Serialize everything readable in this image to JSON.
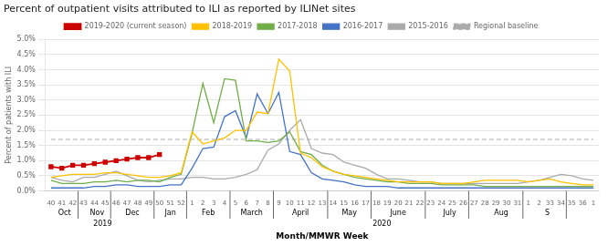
{
  "chart_data": {
    "type": "line",
    "title": "Percent of outpatient visits attributed to ILI as reported by ILINet sites",
    "y_label": "Percent of patients with ILI",
    "x_label": "Month/MMWR Week",
    "categories": [
      "40",
      "41",
      "42",
      "43",
      "44",
      "45",
      "46",
      "47",
      "48",
      "49",
      "50",
      "51",
      "52",
      "1",
      "2",
      "3",
      "4",
      "5",
      "6",
      "7",
      "8",
      "9",
      "10",
      "11",
      "12",
      "13",
      "14",
      "15",
      "16",
      "17",
      "18",
      "19",
      "20",
      "21",
      "22",
      "23",
      "24",
      "25",
      "26",
      "27",
      "28",
      "29",
      "30",
      "31",
      "1",
      "2",
      "33",
      "34",
      "35",
      "36",
      "1"
    ],
    "reference_lines": [
      {
        "name": "Regional baseline",
        "value": 1.7,
        "color": "#aaaaaa",
        "line_style": "dashed"
      }
    ],
    "series": [
      {
        "name": "2015-2016",
        "color": "#aaaaaa",
        "values": [
          0.45,
          0.35,
          0.3,
          0.45,
          0.45,
          0.55,
          0.65,
          0.5,
          0.35,
          0.3,
          0.35,
          0.4,
          0.4,
          0.45,
          0.45,
          0.4,
          0.4,
          0.45,
          0.55,
          0.7,
          1.35,
          1.55,
          2.0,
          2.35,
          1.4,
          1.25,
          1.2,
          0.95,
          0.85,
          0.75,
          0.55,
          0.4,
          0.4,
          0.35,
          0.3,
          0.3,
          0.25,
          0.25,
          0.25,
          0.25,
          0.25,
          0.25,
          0.25,
          0.25,
          0.3,
          0.35,
          0.45,
          0.55,
          0.5,
          0.4,
          0.35
        ]
      },
      {
        "name": "2016-2017",
        "color": "#4472c4",
        "values": [
          0.1,
          0.1,
          0.1,
          0.1,
          0.15,
          0.15,
          0.2,
          0.2,
          0.15,
          0.15,
          0.15,
          0.2,
          0.2,
          0.75,
          1.4,
          1.45,
          2.45,
          2.65,
          1.75,
          3.2,
          2.55,
          3.25,
          1.3,
          1.2,
          0.6,
          0.4,
          0.35,
          0.3,
          0.2,
          0.15,
          0.15,
          0.15,
          0.1,
          0.1,
          0.1,
          0.1,
          0.1,
          0.1,
          0.1,
          0.1,
          0.1,
          0.1,
          0.1,
          0.1,
          0.1,
          0.1,
          0.1,
          0.1,
          0.1,
          0.1,
          0.1
        ]
      },
      {
        "name": "2017-2018",
        "color": "#70ad47",
        "values": [
          0.35,
          0.25,
          0.25,
          0.25,
          0.3,
          0.3,
          0.35,
          0.3,
          0.35,
          0.35,
          0.3,
          0.45,
          0.55,
          1.9,
          3.55,
          2.25,
          3.7,
          3.65,
          1.65,
          1.65,
          1.6,
          1.65,
          1.95,
          1.3,
          1.2,
          0.85,
          0.65,
          0.55,
          0.45,
          0.4,
          0.35,
          0.3,
          0.3,
          0.25,
          0.25,
          0.25,
          0.2,
          0.2,
          0.2,
          0.2,
          0.15,
          0.15,
          0.15,
          0.15,
          0.15,
          0.15,
          0.15,
          0.15,
          0.15,
          0.15,
          0.15
        ]
      },
      {
        "name": "2018-2019",
        "color": "#ffc000",
        "values": [
          0.45,
          0.5,
          0.55,
          0.55,
          0.55,
          0.6,
          0.6,
          0.55,
          0.5,
          0.45,
          0.45,
          0.5,
          0.6,
          1.95,
          1.55,
          1.65,
          1.75,
          2.0,
          2.0,
          2.6,
          2.55,
          4.35,
          3.95,
          1.25,
          1.1,
          0.8,
          0.65,
          0.55,
          0.5,
          0.45,
          0.4,
          0.35,
          0.3,
          0.3,
          0.3,
          0.3,
          0.25,
          0.25,
          0.25,
          0.3,
          0.35,
          0.35,
          0.35,
          0.35,
          0.3,
          0.35,
          0.4,
          0.3,
          0.25,
          0.2,
          0.2
        ]
      },
      {
        "name": "2019-2020 (current season)",
        "color": "#cc0000",
        "marker": "square",
        "values": [
          0.8,
          0.75,
          0.85,
          0.85,
          0.9,
          0.95,
          1.0,
          1.05,
          1.1,
          1.1,
          1.2,
          null,
          null,
          null,
          null,
          null,
          null,
          null,
          null,
          null,
          null,
          null,
          null,
          null,
          null,
          null,
          null,
          null,
          null,
          null,
          null,
          null,
          null,
          null,
          null,
          null,
          null,
          null,
          null,
          null,
          null,
          null,
          null,
          null,
          null,
          null,
          null,
          null,
          null,
          null,
          null
        ]
      }
    ],
    "ylim": [
      0.0,
      5.0
    ],
    "yticks": [
      {
        "value": 0.0,
        "label": "0.0%"
      },
      {
        "value": 0.5,
        "label": "0.5%"
      },
      {
        "value": 1.0,
        "label": "1.0%"
      },
      {
        "value": 1.5,
        "label": "1.5%"
      },
      {
        "value": 2.0,
        "label": "2.0%"
      },
      {
        "value": 2.5,
        "label": "2.5%"
      },
      {
        "value": 3.0,
        "label": "3.0%"
      },
      {
        "value": 3.5,
        "label": "3.5%"
      },
      {
        "value": 4.0,
        "label": "4.0%"
      },
      {
        "value": 4.5,
        "label": "4.5%"
      },
      {
        "value": 5.0,
        "label": "5.0%"
      }
    ],
    "grid": "y",
    "x_separators": [
      2.5,
      5.5,
      9.5,
      12.5,
      16.5,
      20.5,
      25.5,
      29.5,
      34.5,
      38.5,
      43.5,
      47.5
    ],
    "month_labels": [
      {
        "text": "Oct",
        "x": 1.25
      },
      {
        "text": "Nov",
        "x": 4.25
      },
      {
        "text": "Dec",
        "x": 7.5
      },
      {
        "text": "Jan",
        "x": 11.0
      },
      {
        "text": "Feb",
        "x": 14.5
      },
      {
        "text": "March",
        "x": 18.5
      },
      {
        "text": "April",
        "x": 23.0
      },
      {
        "text": "May",
        "x": 27.5
      },
      {
        "text": "June",
        "x": 32.0
      },
      {
        "text": "July",
        "x": 36.75
      },
      {
        "text": "Aug",
        "x": 41.5
      },
      {
        "text": "S",
        "x": 45.75
      }
    ],
    "year_labels": [
      {
        "text": "2019",
        "x": 4.75
      },
      {
        "text": "2020",
        "x": 30.5
      }
    ]
  }
}
